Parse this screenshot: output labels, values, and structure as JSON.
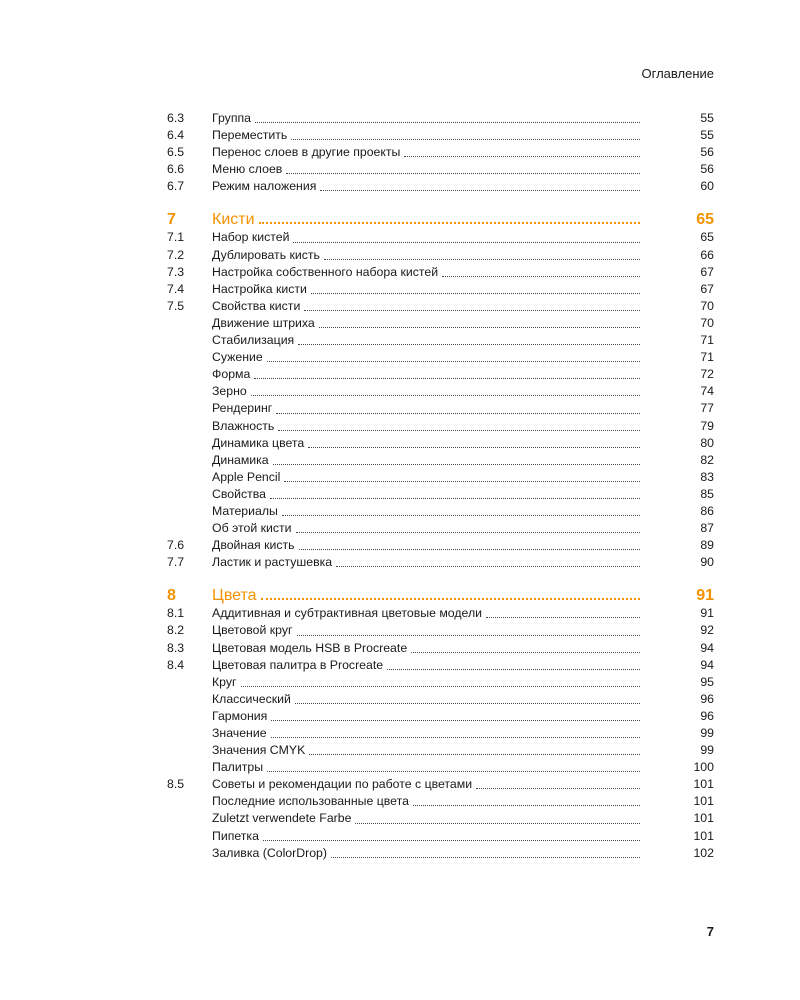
{
  "header": {
    "title": "Оглавление"
  },
  "footer": {
    "page_number": "7"
  },
  "accent_color": "#f39200",
  "toc": [
    {
      "num": "6.3",
      "title": "Группа",
      "page": "55"
    },
    {
      "num": "6.4",
      "title": "Переместить",
      "page": "55"
    },
    {
      "num": "6.5",
      "title": "Перенос слоев в другие проекты",
      "page": "56"
    },
    {
      "num": "6.6",
      "title": "Меню слоев",
      "page": "56"
    },
    {
      "num": "6.7",
      "title": "Режим наложения",
      "page": "60"
    },
    {
      "num": "7",
      "title": "Кисти",
      "page": "65",
      "chapter": true
    },
    {
      "num": "7.1",
      "title": "Набор кистей",
      "page": "65"
    },
    {
      "num": "7.2",
      "title": "Дублировать кисть",
      "page": "66"
    },
    {
      "num": "7.3",
      "title": "Настройка собственного набора кистей",
      "page": "67"
    },
    {
      "num": "7.4",
      "title": "Настройка кисти",
      "page": "67"
    },
    {
      "num": "7.5",
      "title": "Свойства кисти",
      "page": "70"
    },
    {
      "num": "",
      "title": "Движение штриха",
      "page": "70"
    },
    {
      "num": "",
      "title": "Стабилизация",
      "page": "71"
    },
    {
      "num": "",
      "title": "Сужение",
      "page": "71"
    },
    {
      "num": "",
      "title": "Форма",
      "page": "72"
    },
    {
      "num": "",
      "title": "Зерно",
      "page": "74"
    },
    {
      "num": "",
      "title": "Рендеринг",
      "page": "77"
    },
    {
      "num": "",
      "title": "Влажность",
      "page": "79"
    },
    {
      "num": "",
      "title": "Динамика цвета",
      "page": "80"
    },
    {
      "num": "",
      "title": "Динамика",
      "page": "82"
    },
    {
      "num": "",
      "title": "Apple Pencil",
      "page": "83"
    },
    {
      "num": "",
      "title": "Свойства",
      "page": "85"
    },
    {
      "num": "",
      "title": "Материалы",
      "page": "86"
    },
    {
      "num": "",
      "title": "Об этой кисти",
      "page": "87"
    },
    {
      "num": "7.6",
      "title": "Двойная кисть",
      "page": "89"
    },
    {
      "num": "7.7",
      "title": "Ластик и растушевка",
      "page": "90"
    },
    {
      "num": "8",
      "title": "Цвета",
      "page": "91",
      "chapter": true
    },
    {
      "num": "8.1",
      "title": "Аддитивная и субтрактивная цветовые модели",
      "page": "91"
    },
    {
      "num": "8.2",
      "title": "Цветовой круг",
      "page": "92"
    },
    {
      "num": "8.3",
      "title": "Цветовая модель HSB в Procreate",
      "page": "94"
    },
    {
      "num": "8.4",
      "title": "Цветовая палитра в Procreate",
      "page": "94"
    },
    {
      "num": "",
      "title": "Круг",
      "page": "95"
    },
    {
      "num": "",
      "title": "Классический",
      "page": "96"
    },
    {
      "num": "",
      "title": "Гармония",
      "page": "96"
    },
    {
      "num": "",
      "title": "Значение",
      "page": "99"
    },
    {
      "num": "",
      "title": "Значения CMYK",
      "page": "99"
    },
    {
      "num": "",
      "title": "Палитры",
      "page": "100"
    },
    {
      "num": "8.5",
      "title": "Советы и рекомендации по работе с цветами",
      "page": "101"
    },
    {
      "num": "",
      "title": "Последние использованные цвета",
      "page": "101"
    },
    {
      "num": "",
      "title": "Zuletzt verwendete Farbe",
      "page": "101"
    },
    {
      "num": "",
      "title": "Пипетка",
      "page": "101"
    },
    {
      "num": "",
      "title": "Заливка (ColorDrop)",
      "page": "102"
    }
  ]
}
